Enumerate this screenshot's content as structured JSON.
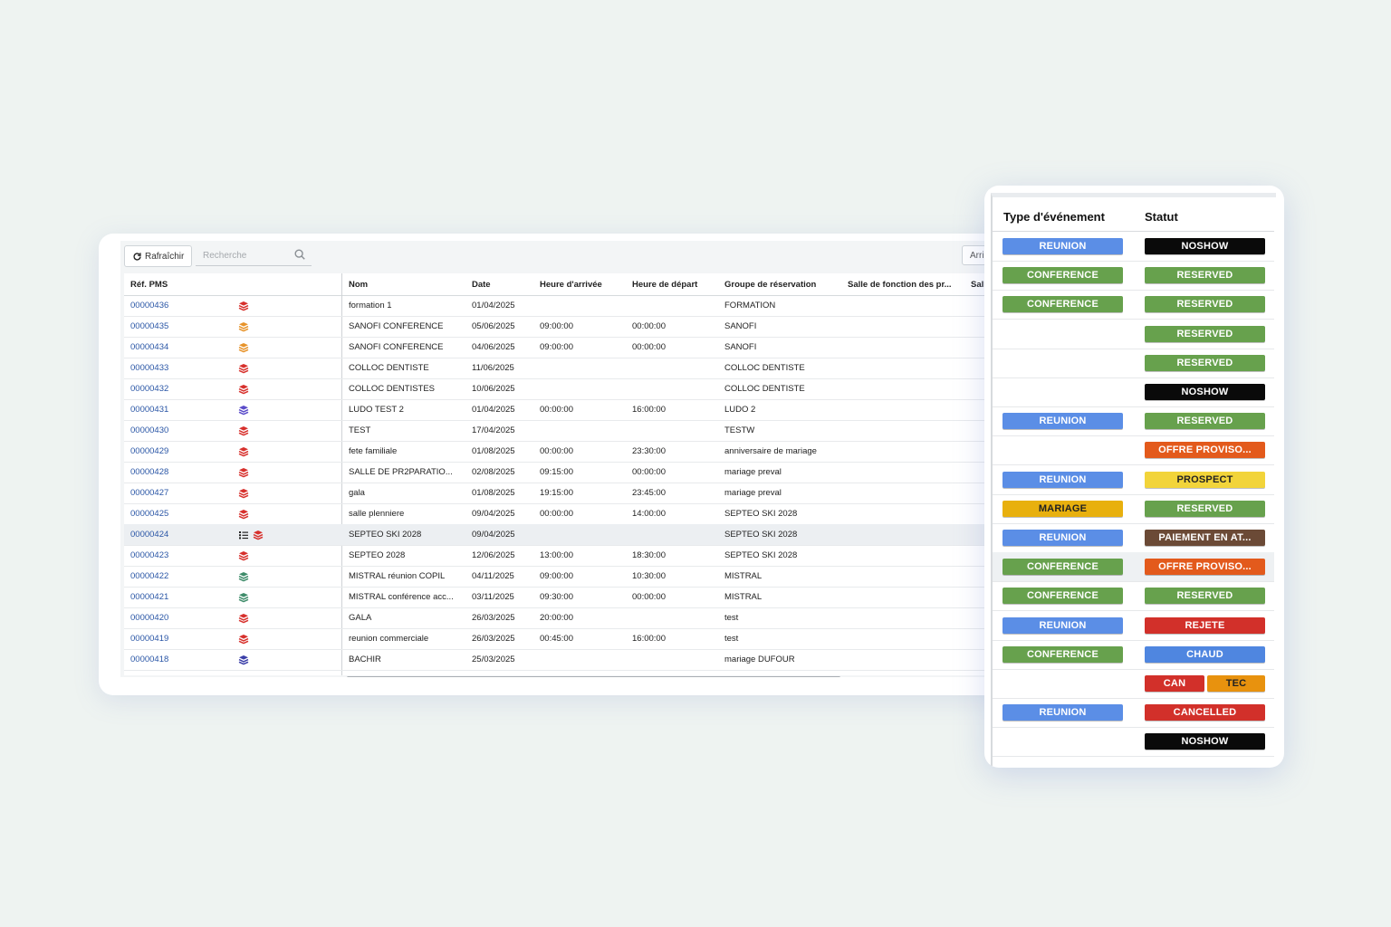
{
  "toolbar": {
    "refresh_label": "Rafraîchir",
    "search_placeholder": "Recherche",
    "right_button_label": "Arri"
  },
  "table": {
    "columns": {
      "ref": "Réf. PMS",
      "nom": "Nom",
      "date": "Date",
      "arrivee": "Heure d'arrivée",
      "depart": "Heure de départ",
      "groupe": "Groupe de réservation",
      "salle": "Salle de fonction des pr...",
      "salle2": "Sall"
    },
    "rows": [
      {
        "ref": "00000436",
        "icons": [
          "stack-red"
        ],
        "nom": "formation 1",
        "date": "01/04/2025",
        "arrivee": "",
        "depart": "",
        "groupe": "FORMATION"
      },
      {
        "ref": "00000435",
        "icons": [
          "stack-orange"
        ],
        "nom": "SANOFI CONFERENCE",
        "date": "05/06/2025",
        "arrivee": "09:00:00",
        "depart": "00:00:00",
        "groupe": "SANOFI"
      },
      {
        "ref": "00000434",
        "icons": [
          "stack-orange"
        ],
        "nom": "SANOFI CONFERENCE",
        "date": "04/06/2025",
        "arrivee": "09:00:00",
        "depart": "00:00:00",
        "groupe": "SANOFI"
      },
      {
        "ref": "00000433",
        "icons": [
          "stack-red"
        ],
        "nom": "COLLOC DENTISTE",
        "date": "11/06/2025",
        "arrivee": "",
        "depart": "",
        "groupe": "COLLOC DENTISTE"
      },
      {
        "ref": "00000432",
        "icons": [
          "stack-red"
        ],
        "nom": "COLLOC DENTISTES",
        "date": "10/06/2025",
        "arrivee": "",
        "depart": "",
        "groupe": "COLLOC DENTISTE"
      },
      {
        "ref": "00000431",
        "icons": [
          "stack-purple"
        ],
        "nom": "LUDO TEST 2",
        "date": "01/04/2025",
        "arrivee": "00:00:00",
        "depart": "16:00:00",
        "groupe": "LUDO 2"
      },
      {
        "ref": "00000430",
        "icons": [
          "stack-red"
        ],
        "nom": "TEST",
        "date": "17/04/2025",
        "arrivee": "",
        "depart": "",
        "groupe": "TESTW"
      },
      {
        "ref": "00000429",
        "icons": [
          "stack-red"
        ],
        "nom": "fete familiale",
        "date": "01/08/2025",
        "arrivee": "00:00:00",
        "depart": "23:30:00",
        "groupe": "anniversaire de mariage"
      },
      {
        "ref": "00000428",
        "icons": [
          "stack-red"
        ],
        "nom": "SALLE DE PR2PARATIO...",
        "date": "02/08/2025",
        "arrivee": "09:15:00",
        "depart": "00:00:00",
        "groupe": "mariage preval"
      },
      {
        "ref": "00000427",
        "icons": [
          "stack-red"
        ],
        "nom": "gala",
        "date": "01/08/2025",
        "arrivee": "19:15:00",
        "depart": "23:45:00",
        "groupe": "mariage preval"
      },
      {
        "ref": "00000425",
        "icons": [
          "stack-red"
        ],
        "nom": "salle plenniere",
        "date": "09/04/2025",
        "arrivee": "00:00:00",
        "depart": "14:00:00",
        "groupe": "SEPTEO SKI 2028"
      },
      {
        "ref": "00000424",
        "icons": [
          "list",
          "stack-red"
        ],
        "nom": "SEPTEO SKI 2028",
        "date": "09/04/2025",
        "arrivee": "",
        "depart": "",
        "groupe": "SEPTEO SKI 2028"
      },
      {
        "ref": "00000423",
        "icons": [
          "stack-red"
        ],
        "nom": "SEPTEO 2028",
        "date": "12/06/2025",
        "arrivee": "13:00:00",
        "depart": "18:30:00",
        "groupe": "SEPTEO SKI 2028"
      },
      {
        "ref": "00000422",
        "icons": [
          "stack-green"
        ],
        "nom": "MISTRAL réunion COPIL",
        "date": "04/11/2025",
        "arrivee": "09:00:00",
        "depart": "10:30:00",
        "groupe": "MISTRAL"
      },
      {
        "ref": "00000421",
        "icons": [
          "stack-green"
        ],
        "nom": "MISTRAL conférence acc...",
        "date": "03/11/2025",
        "arrivee": "09:30:00",
        "depart": "00:00:00",
        "groupe": "MISTRAL"
      },
      {
        "ref": "00000420",
        "icons": [
          "stack-red"
        ],
        "nom": "GALA",
        "date": "26/03/2025",
        "arrivee": "20:00:00",
        "depart": "",
        "groupe": "test"
      },
      {
        "ref": "00000419",
        "icons": [
          "stack-red"
        ],
        "nom": "reunion commerciale",
        "date": "26/03/2025",
        "arrivee": "00:45:00",
        "depart": "16:00:00",
        "groupe": "test"
      },
      {
        "ref": "00000418",
        "icons": [
          "stack-indigo"
        ],
        "nom": "BACHIR",
        "date": "25/03/2025",
        "arrivee": "",
        "depart": "",
        "groupe": "mariage DUFOUR"
      }
    ]
  },
  "side": {
    "col_type": "Type d'événement",
    "col_statut": "Statut",
    "rows": [
      {
        "type": "REUNION",
        "type_color": "#5b8ee6",
        "statut": [
          {
            "label": "NOSHOW",
            "color": "#0a0a0a",
            "text": "#ffffff"
          }
        ]
      },
      {
        "type": "CONFERENCE",
        "type_color": "#67a14d",
        "statut": [
          {
            "label": "RESERVED",
            "color": "#67a14d",
            "text": "#ffffff"
          }
        ]
      },
      {
        "type": "CONFERENCE",
        "type_color": "#67a14d",
        "statut": [
          {
            "label": "RESERVED",
            "color": "#67a14d",
            "text": "#ffffff"
          }
        ]
      },
      {
        "type": "",
        "type_color": "",
        "statut": [
          {
            "label": "RESERVED",
            "color": "#67a14d",
            "text": "#ffffff"
          }
        ]
      },
      {
        "type": "",
        "type_color": "",
        "statut": [
          {
            "label": "RESERVED",
            "color": "#67a14d",
            "text": "#ffffff"
          }
        ]
      },
      {
        "type": "",
        "type_color": "",
        "statut": [
          {
            "label": "NOSHOW",
            "color": "#0a0a0a",
            "text": "#ffffff"
          }
        ]
      },
      {
        "type": "REUNION",
        "type_color": "#5b8ee6",
        "statut": [
          {
            "label": "RESERVED",
            "color": "#67a14d",
            "text": "#ffffff"
          }
        ]
      },
      {
        "type": "",
        "type_color": "",
        "statut": [
          {
            "label": "OFFRE PROVISO...",
            "color": "#e35a1c",
            "text": "#ffffff"
          }
        ]
      },
      {
        "type": "REUNION",
        "type_color": "#5b8ee6",
        "statut": [
          {
            "label": "PROSPECT",
            "color": "#f2d43a",
            "text": "#222222"
          }
        ]
      },
      {
        "type": "MARIAGE",
        "type_color": "#e8b00e",
        "type_text": "#222222",
        "statut": [
          {
            "label": "RESERVED",
            "color": "#67a14d",
            "text": "#ffffff"
          }
        ]
      },
      {
        "type": "REUNION",
        "type_color": "#5b8ee6",
        "statut": [
          {
            "label": "PAIEMENT EN AT...",
            "color": "#6b4a36",
            "text": "#ffffff"
          }
        ]
      },
      {
        "type": "CONFERENCE",
        "type_color": "#67a14d",
        "statut": [
          {
            "label": "OFFRE PROVISO...",
            "color": "#e35a1c",
            "text": "#ffffff"
          }
        ],
        "highlight": true
      },
      {
        "type": "CONFERENCE",
        "type_color": "#67a14d",
        "statut": [
          {
            "label": "RESERVED",
            "color": "#67a14d",
            "text": "#ffffff"
          }
        ]
      },
      {
        "type": "REUNION",
        "type_color": "#5b8ee6",
        "statut": [
          {
            "label": "REJETE",
            "color": "#d2302a",
            "text": "#ffffff"
          }
        ]
      },
      {
        "type": "CONFERENCE",
        "type_color": "#67a14d",
        "statut": [
          {
            "label": "CHAUD",
            "color": "#4f86e0",
            "text": "#ffffff"
          }
        ]
      },
      {
        "type": "",
        "type_color": "",
        "statut": [
          {
            "label": "CAN",
            "color": "#d2302a",
            "text": "#ffffff"
          },
          {
            "label": "TEC",
            "color": "#e8920e",
            "text": "#222222"
          }
        ]
      },
      {
        "type": "REUNION",
        "type_color": "#5b8ee6",
        "statut": [
          {
            "label": "CANCELLED",
            "color": "#d2302a",
            "text": "#ffffff"
          }
        ]
      },
      {
        "type": "",
        "type_color": "",
        "statut": [
          {
            "label": "NOSHOW",
            "color": "#0a0a0a",
            "text": "#ffffff"
          }
        ]
      }
    ]
  },
  "icon_colors": {
    "stack-red": "#d7302c",
    "stack-orange": "#e7932a",
    "stack-purple": "#5a4bc9",
    "stack-green": "#3e8c6a",
    "stack-indigo": "#3a3ea8"
  }
}
